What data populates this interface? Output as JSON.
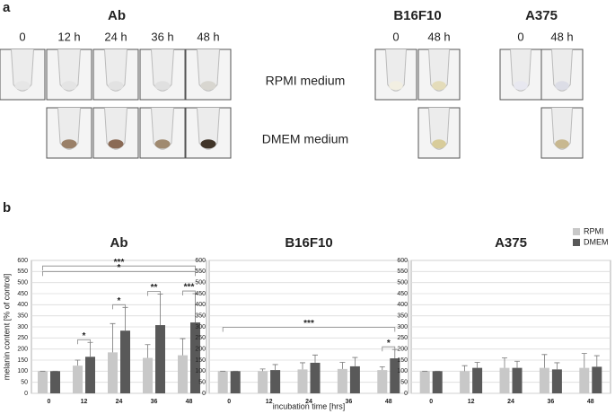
{
  "panel_a": {
    "label": "a",
    "groups": [
      {
        "title": "Ab",
        "times": [
          "0",
          "12 h",
          "24 h",
          "36 h",
          "48 h"
        ]
      },
      {
        "title": "B16F10",
        "times": [
          "0",
          "48 h"
        ]
      },
      {
        "title": "A375",
        "times": [
          "0",
          "48 h"
        ]
      }
    ],
    "media": [
      "RPMI medium",
      "DMEM medium"
    ]
  },
  "panel_b": {
    "label": "b"
  },
  "chart_data": [
    {
      "type": "bar",
      "title": "Ab",
      "ylabel": "melanin content [% of control]",
      "categories": [
        "0",
        "12",
        "24",
        "36",
        "48"
      ],
      "series": [
        {
          "name": "RPMI",
          "color": "#c8c8c8",
          "values": [
            100,
            125,
            185,
            160,
            172
          ],
          "errors": [
            0,
            25,
            130,
            60,
            75
          ]
        },
        {
          "name": "DMEM",
          "color": "#595959",
          "values": [
            100,
            165,
            283,
            308,
            320
          ],
          "errors": [
            0,
            65,
            105,
            140,
            130
          ]
        }
      ],
      "annotations": [
        {
          "text": "***",
          "from": "0",
          "to": "48"
        },
        {
          "text": "*",
          "from": "0",
          "to": "48"
        },
        {
          "text": "*",
          "from": "12",
          "to": "12"
        },
        {
          "text": "*",
          "from": "24",
          "to": "24"
        },
        {
          "text": "**",
          "from": "36",
          "to": "36"
        },
        {
          "text": "***",
          "from": "48",
          "to": "48"
        }
      ],
      "ylim": [
        0,
        600
      ],
      "yticks": [
        0,
        50,
        100,
        150,
        200,
        250,
        300,
        350,
        400,
        450,
        500,
        550,
        600
      ],
      "grid": true
    },
    {
      "type": "bar",
      "title": "B16F10",
      "xlabel": "incubation time [hrs]",
      "categories": [
        "0",
        "12",
        "24",
        "36",
        "48"
      ],
      "series": [
        {
          "name": "RPMI",
          "color": "#c8c8c8",
          "values": [
            100,
            100,
            108,
            110,
            105
          ],
          "errors": [
            0,
            10,
            30,
            30,
            15
          ]
        },
        {
          "name": "DMEM",
          "color": "#595959",
          "values": [
            100,
            105,
            138,
            122,
            158
          ],
          "errors": [
            0,
            25,
            35,
            40,
            40
          ]
        }
      ],
      "annotations": [
        {
          "text": "***",
          "from": "0",
          "to": "48"
        },
        {
          "text": "*",
          "from": "48",
          "to": "48"
        }
      ],
      "ylim": [
        0,
        600
      ],
      "yticks": [
        0,
        50,
        100,
        150,
        200,
        250,
        300,
        350,
        400,
        450,
        500,
        550,
        600
      ],
      "grid": true
    },
    {
      "type": "bar",
      "title": "A375",
      "categories": [
        "0",
        "12",
        "24",
        "36",
        "48"
      ],
      "series": [
        {
          "name": "RPMI",
          "color": "#c8c8c8",
          "values": [
            100,
            100,
            115,
            115,
            115
          ],
          "errors": [
            0,
            25,
            45,
            60,
            65
          ]
        },
        {
          "name": "DMEM",
          "color": "#595959",
          "values": [
            100,
            115,
            115,
            108,
            120
          ],
          "errors": [
            0,
            25,
            30,
            30,
            50
          ]
        }
      ],
      "legend": "top-right",
      "ylim": [
        0,
        600
      ],
      "yticks": [
        0,
        50,
        100,
        150,
        200,
        250,
        300,
        350,
        400,
        450,
        500,
        550,
        600
      ],
      "grid": true
    }
  ]
}
